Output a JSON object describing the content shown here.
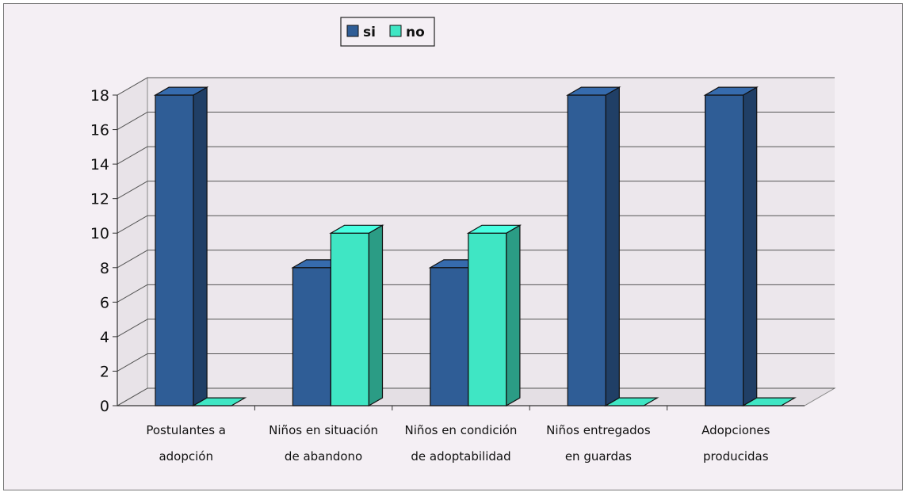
{
  "chart_data": {
    "type": "bar",
    "categories": [
      [
        "Postulantes a",
        "adopción"
      ],
      [
        "Niños en situación",
        "de abandono"
      ],
      [
        "Niños en condición",
        "de adoptabilidad"
      ],
      [
        "Niños entregados",
        "en guardas"
      ],
      [
        "Adopciones",
        "producidas"
      ]
    ],
    "series": [
      {
        "name": "si",
        "values": [
          18,
          8,
          8,
          18,
          18
        ],
        "color": "#2f5d96"
      },
      {
        "name": "no",
        "values": [
          0,
          10,
          10,
          0,
          0
        ],
        "color": "#3fe6c4"
      }
    ],
    "ylim": [
      0,
      18
    ],
    "yticks": [
      "0",
      "2",
      "4",
      "6",
      "8",
      "10",
      "12",
      "14",
      "16",
      "18"
    ],
    "grid": true,
    "three_d": true,
    "legend_position": "top-center"
  }
}
